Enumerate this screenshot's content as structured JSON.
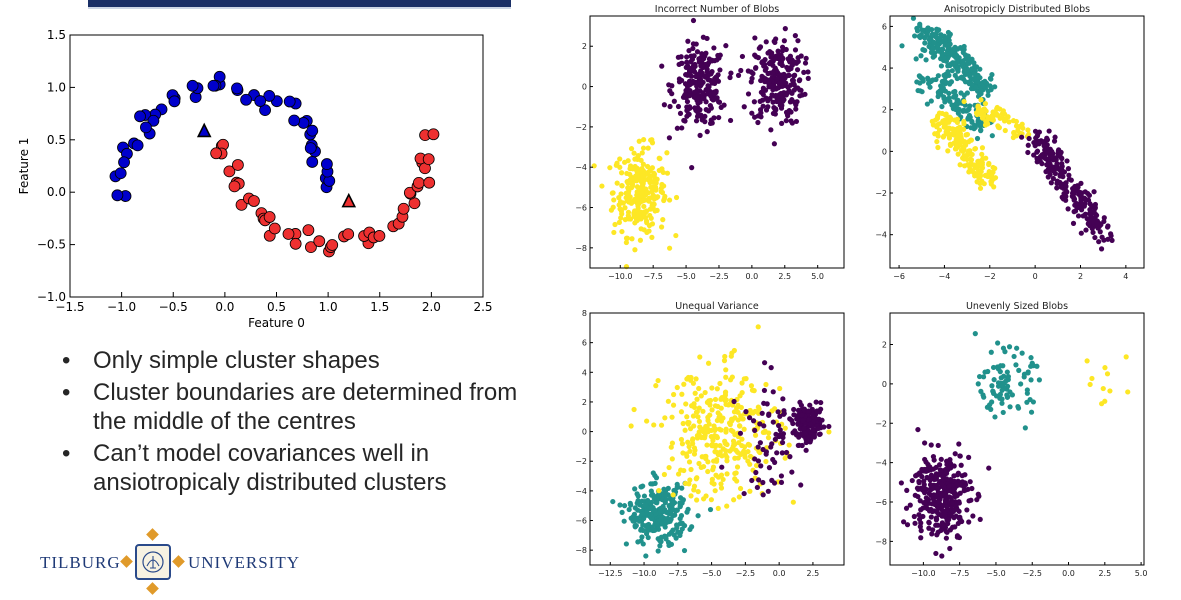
{
  "bullets": [
    "Only simple cluster shapes",
    "Cluster boundaries are determined from the middle of the centres",
    "Can’t model covariances well in ansiotropicaly distributed clusters"
  ],
  "logo": {
    "left_word": "TILBURG",
    "right_word": "UNIVERSITY",
    "seal_icon": "university-seal-icon"
  },
  "colors": {
    "blue": "#0000cc",
    "red": "#ee3030",
    "purple": "#440154",
    "teal": "#21918c",
    "yellow": "#fde725",
    "navy": "#1a2f66",
    "gold": "#e09a2a"
  },
  "chart_data": [
    {
      "type": "scatter",
      "id": "moons",
      "xlabel": "Feature 0",
      "ylabel": "Feature 1",
      "xlim": [
        -1.5,
        2.5
      ],
      "ylim": [
        -1.0,
        1.5
      ],
      "xticks": [
        "−1.5",
        "−1.0",
        "−0.5",
        "0.0",
        "0.5",
        "1.0",
        "1.5",
        "2.0",
        "2.5"
      ],
      "yticks": [
        "−1.0",
        "−0.5",
        "0.0",
        "0.5",
        "1.0",
        "1.5"
      ],
      "series": [
        {
          "shape": "moon-upper",
          "x_range": [
            -1.05,
            1.1
          ],
          "count": 50,
          "color": "#0000cc"
        },
        {
          "shape": "moon-lower",
          "x_range": [
            -0.1,
            2.05
          ],
          "count": 50,
          "color": "#ee3030"
        }
      ],
      "centers": [
        {
          "x": -0.2,
          "y": 0.58,
          "color": "#0000cc"
        },
        {
          "x": 1.2,
          "y": -0.09,
          "color": "#ee3030"
        }
      ]
    },
    {
      "type": "scatter",
      "id": "blobs-incorrect",
      "title": "Incorrect Number of Blobs",
      "xlim": [
        -12.3,
        7.0
      ],
      "ylim": [
        -9.0,
        3.5
      ],
      "xticks": [
        -10.0,
        -7.5,
        -5.0,
        -2.5,
        0.0,
        2.5,
        5.0
      ],
      "yticks": [
        -8,
        -6,
        -4,
        -2,
        0,
        2
      ],
      "clusters": [
        {
          "cx": -8.5,
          "cy": -5.2,
          "sx": 1.0,
          "sy": 1.1,
          "n": 260,
          "color": "#fde725"
        },
        {
          "cx": -4.0,
          "cy": 0.0,
          "sx": 1.0,
          "sy": 1.0,
          "n": 240,
          "color": "#440154"
        },
        {
          "cx": 1.9,
          "cy": 0.3,
          "sx": 1.0,
          "sy": 1.1,
          "n": 240,
          "color": "#440154"
        }
      ]
    },
    {
      "type": "scatter",
      "id": "blobs-aniso",
      "title": "Anisotropicly Distributed Blobs",
      "xlim": [
        -6.4,
        4.8
      ],
      "ylim": [
        -5.6,
        6.5
      ],
      "xticks": [
        -6,
        -4,
        -2,
        0,
        2,
        4
      ],
      "yticks": [
        -4,
        -2,
        0,
        2,
        4,
        6
      ],
      "clusters": [
        {
          "x0": -5.0,
          "y0": 5.8,
          "x1": -2.2,
          "y1": 3.0,
          "w": 0.35,
          "n": 240,
          "color": "#21918c"
        },
        {
          "x0": -5.0,
          "y0": 3.6,
          "x1": -2.2,
          "y1": 1.2,
          "w": 0.28,
          "n": 120,
          "color": "#21918c"
        },
        {
          "x0": -4.2,
          "y0": 1.6,
          "x1": -2.0,
          "y1": -1.5,
          "w": 0.3,
          "n": 180,
          "color": "#fde725"
        },
        {
          "x0": -2.5,
          "y0": 2.0,
          "x1": -0.6,
          "y1": 1.0,
          "w": 0.25,
          "n": 70,
          "color": "#fde725"
        },
        {
          "x0": 0.0,
          "y0": 0.8,
          "x1": 3.0,
          "y1": -4.0,
          "w": 0.3,
          "n": 240,
          "color": "#440154"
        }
      ]
    },
    {
      "type": "scatter",
      "id": "blobs-variance",
      "title": "Unequal Variance",
      "xlim": [
        -14.0,
        4.8
      ],
      "ylim": [
        -9.0,
        8.0
      ],
      "xticks": [
        -12.5,
        -10.0,
        -7.5,
        -5.0,
        -2.5,
        0.0,
        2.5
      ],
      "yticks": [
        -8,
        -6,
        -4,
        -2,
        0,
        2,
        4,
        6,
        8
      ],
      "clusters": [
        {
          "cx": -9.0,
          "cy": -5.6,
          "sx": 1.1,
          "sy": 1.0,
          "n": 260,
          "color": "#21918c"
        },
        {
          "cx": -4.2,
          "cy": -0.2,
          "sx": 2.2,
          "sy": 2.2,
          "n": 330,
          "color": "#fde725"
        },
        {
          "cx": 2.2,
          "cy": 0.5,
          "sx": 0.6,
          "sy": 0.6,
          "n": 140,
          "color": "#440154"
        },
        {
          "cx": -0.5,
          "cy": -0.5,
          "sx": 1.2,
          "sy": 2.0,
          "n": 70,
          "color": "#440154"
        }
      ]
    },
    {
      "type": "scatter",
      "id": "blobs-uneven",
      "title": "Unevenly Sized Blobs",
      "xlim": [
        -12.3,
        5.2
      ],
      "ylim": [
        -9.2,
        3.6
      ],
      "xticks": [
        -10.0,
        -7.5,
        -5.0,
        -2.5,
        0.0,
        2.5,
        5.0
      ],
      "yticks": [
        -8,
        -6,
        -4,
        -2,
        0,
        2
      ],
      "clusters": [
        {
          "cx": -8.8,
          "cy": -5.6,
          "sx": 1.0,
          "sy": 1.1,
          "n": 320,
          "color": "#440154"
        },
        {
          "cx": -4.3,
          "cy": 0.0,
          "sx": 0.9,
          "sy": 0.8,
          "n": 90,
          "color": "#21918c"
        },
        {
          "cx": 2.6,
          "cy": 0.5,
          "sx": 1.0,
          "sy": 1.1,
          "n": 11,
          "color": "#fde725"
        }
      ]
    }
  ]
}
